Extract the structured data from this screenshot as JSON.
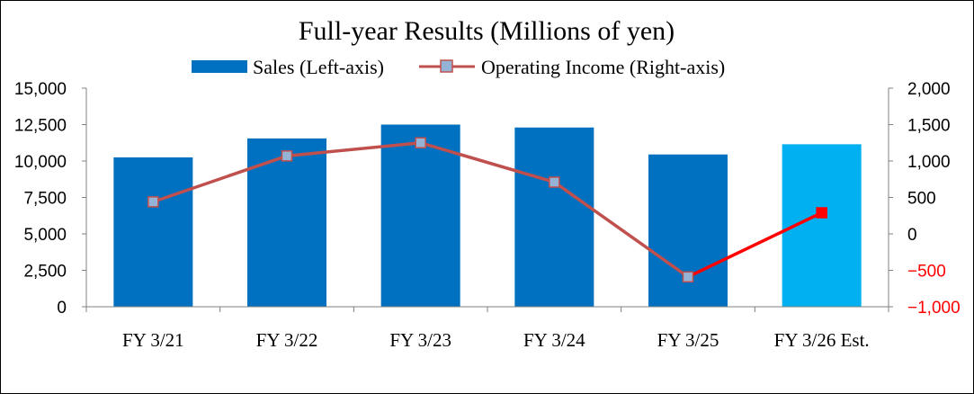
{
  "chart_data": {
    "type": "bar",
    "title": "Full-year Results (Millions of yen)",
    "categories": [
      "FY 3/21",
      "FY 3/22",
      "FY 3/23",
      "FY 3/24",
      "FY 3/25",
      "FY 3/26 Est."
    ],
    "series": [
      {
        "name": "Sales (Left-axis)",
        "type": "bar",
        "axis": "left",
        "values": [
          10250,
          11550,
          12500,
          12300,
          10450,
          11150
        ],
        "color": "#0070C0",
        "estimate_color": "#00B0F0"
      },
      {
        "name": "Operating Income (Right-axis)",
        "type": "line",
        "axis": "right",
        "values": [
          440,
          1070,
          1250,
          710,
          -590,
          290
        ],
        "color": "#C0504D",
        "marker_color": "#95B3D7",
        "estimate_color": "#FF0000"
      }
    ],
    "left_axis": {
      "ylim": [
        0,
        15000
      ],
      "ticks": [
        0,
        2500,
        5000,
        7500,
        10000,
        12500,
        15000
      ],
      "tick_labels": [
        "0",
        "2,500",
        "5,000",
        "7,500",
        "10,000",
        "12,500",
        "15,000"
      ]
    },
    "right_axis": {
      "ylim": [
        -1000,
        2000
      ],
      "ticks": [
        -1000,
        -500,
        0,
        500,
        1000,
        1500,
        2000
      ],
      "tick_labels": [
        "−1,000",
        "−500",
        "0",
        "500",
        "1,000",
        "1,500",
        "2,000"
      ],
      "negative_color": "#FF0000"
    },
    "grid": false,
    "legend_position": "top"
  }
}
